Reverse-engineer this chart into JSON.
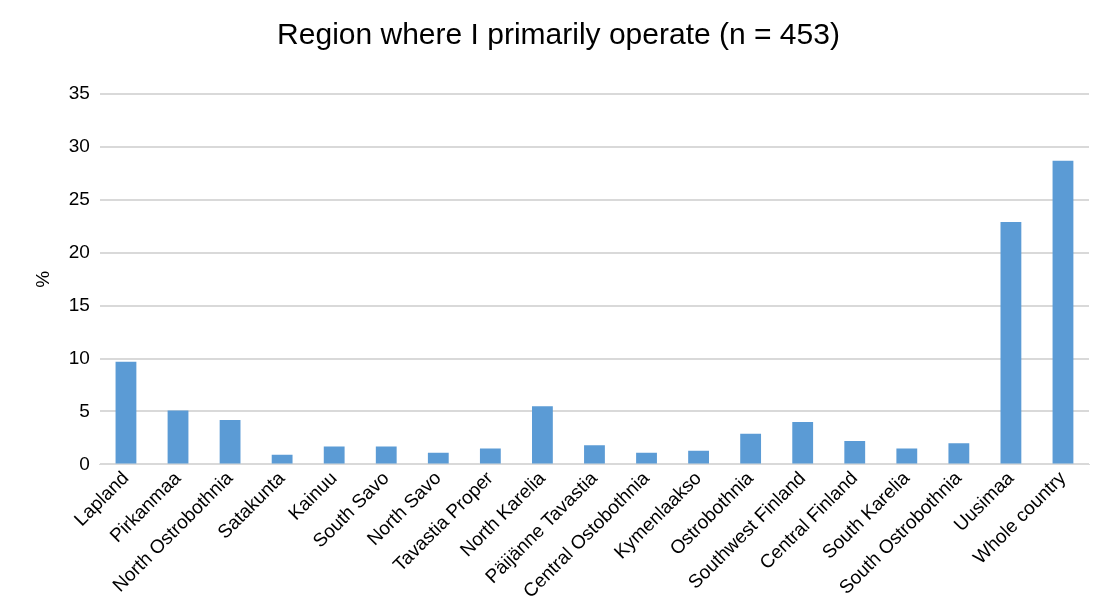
{
  "chart_data": {
    "type": "bar",
    "title": "Region where I primarily operate (n = 453)",
    "ylabel": "%",
    "categories": [
      "Lapland",
      "Pirkanmaa",
      "North Ostrobothnia",
      "Satakunta",
      "Kainuu",
      "South Savo",
      "North Savo",
      "Tavastia Proper",
      "North Karelia",
      "Päijänne Tavastia",
      "Central Ostobothnia",
      "Kymenlaakso",
      "Ostrobothnia",
      "Southwest Finland",
      "Central Finland",
      "South Karelia",
      "South Ostrobothnia",
      "Uusimaa",
      "Whole country"
    ],
    "values": [
      9.7,
      5.1,
      4.2,
      0.9,
      1.7,
      1.7,
      1.1,
      1.5,
      5.5,
      1.8,
      1.1,
      1.3,
      2.9,
      4.0,
      2.2,
      1.5,
      2.0,
      22.9,
      28.7
    ],
    "color": "#5b9bd5",
    "ylim": [
      0,
      35
    ],
    "yticks": [
      0,
      5,
      10,
      15,
      20,
      25,
      30,
      35
    ],
    "grid": "y"
  }
}
